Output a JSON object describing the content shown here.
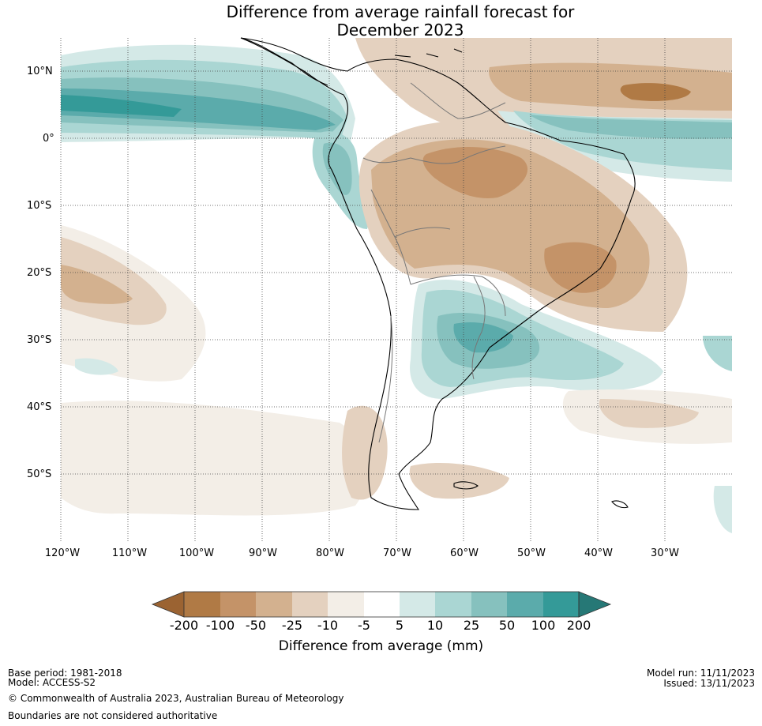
{
  "title": {
    "line1": "Difference from average rainfall forecast for",
    "line2": "December 2023"
  },
  "map": {
    "region": "South America",
    "lat_labels": [
      "10°N",
      "0°",
      "10°S",
      "20°S",
      "30°S",
      "40°S",
      "50°S"
    ],
    "lon_labels": [
      "120°W",
      "110°W",
      "100°W",
      "90°W",
      "80°W",
      "70°W",
      "60°W",
      "50°W",
      "40°W",
      "30°W"
    ],
    "graticule": "dotted",
    "extent": {
      "lon": [
        -120,
        -20
      ],
      "lat": [
        -60,
        15
      ]
    }
  },
  "colorbar": {
    "title": "Difference from average (mm)",
    "tick_labels": [
      "-200",
      "-100",
      "-50",
      "-25",
      "-10",
      "-5",
      "5",
      "10",
      "25",
      "50",
      "100",
      "200"
    ],
    "colors": {
      "below_min": "#9b6332",
      "-200_-100": "#b07a45",
      "-100_-50": "#c49368",
      "-50_-25": "#d3b18f",
      "-25_-10": "#e4d1bf",
      "-10_-5": "#f3eee7",
      "-5_5": "#ffffff",
      "5_10": "#d4e9e7",
      "10_25": "#aad6d3",
      "25_50": "#86c1be",
      "50_100": "#5babab",
      "100_200": "#349a98",
      "above_max": "#267876"
    }
  },
  "footer": {
    "base_period": "Base period: 1981-2018",
    "model": "Model: ACCESS-S2",
    "copyright": "© Commonwealth of Australia 2023, Australian Bureau of Meteorology",
    "boundaries": "Boundaries are not considered authoritative",
    "model_run": "Model run: 11/11/2023",
    "issued": "Issued: 13/11/2023"
  }
}
